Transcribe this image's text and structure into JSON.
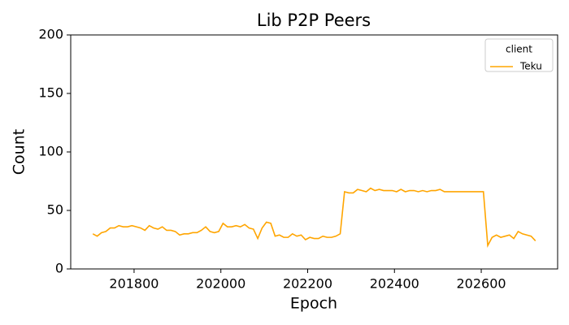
{
  "chart_data": {
    "type": "line",
    "title": "Lib P2P Peers",
    "x_label": "Epoch",
    "y_label": "Count",
    "legend_title": "client",
    "legend_position": "upper right",
    "grid": false,
    "x": [
      201705,
      201715,
      201725,
      201735,
      201745,
      201755,
      201765,
      201775,
      201785,
      201795,
      201805,
      201815,
      201825,
      201835,
      201845,
      201855,
      201865,
      201875,
      201885,
      201895,
      201905,
      201915,
      201925,
      201935,
      201945,
      201955,
      201965,
      201975,
      201985,
      201995,
      202005,
      202015,
      202025,
      202035,
      202045,
      202055,
      202065,
      202075,
      202085,
      202095,
      202105,
      202115,
      202125,
      202135,
      202145,
      202155,
      202165,
      202175,
      202185,
      202195,
      202205,
      202215,
      202225,
      202235,
      202245,
      202255,
      202265,
      202275,
      202285,
      202295,
      202305,
      202315,
      202325,
      202335,
      202345,
      202355,
      202365,
      202375,
      202385,
      202395,
      202405,
      202415,
      202425,
      202435,
      202445,
      202455,
      202465,
      202475,
      202485,
      202495,
      202505,
      202515,
      202525,
      202535,
      202545,
      202555,
      202565,
      202575,
      202585,
      202595,
      202605,
      202615,
      202625,
      202635,
      202645,
      202655,
      202665,
      202675,
      202685,
      202695,
      202705,
      202715,
      202725
    ],
    "series": [
      {
        "name": "Teku",
        "color": "#ffa500",
        "values": [
          30,
          28,
          31,
          32,
          35,
          35,
          37,
          36,
          36,
          37,
          36,
          35,
          33,
          37,
          35,
          34,
          36,
          33,
          33,
          32,
          29,
          30,
          30,
          31,
          31,
          33,
          36,
          32,
          31,
          32,
          39,
          36,
          36,
          37,
          36,
          38,
          35,
          34,
          26,
          35,
          40,
          39,
          28,
          29,
          27,
          27,
          30,
          28,
          29,
          25,
          27,
          26,
          26,
          28,
          27,
          27,
          28,
          30,
          66,
          65,
          65,
          68,
          67,
          66,
          69,
          67,
          68,
          67,
          67,
          67,
          66,
          68,
          66,
          67,
          67,
          66,
          67,
          66,
          67,
          67,
          68,
          66,
          66,
          66,
          66,
          66,
          66,
          66,
          66,
          66,
          66,
          20,
          27,
          29,
          27,
          28,
          29,
          26,
          32,
          30,
          29,
          28,
          24
        ]
      }
    ],
    "xlim": [
      201654,
      202776
    ],
    "ylim": [
      0,
      200
    ],
    "xticks": [
      201800,
      202000,
      202200,
      202400,
      202600
    ],
    "yticks": [
      0,
      50,
      100,
      150,
      200
    ]
  }
}
